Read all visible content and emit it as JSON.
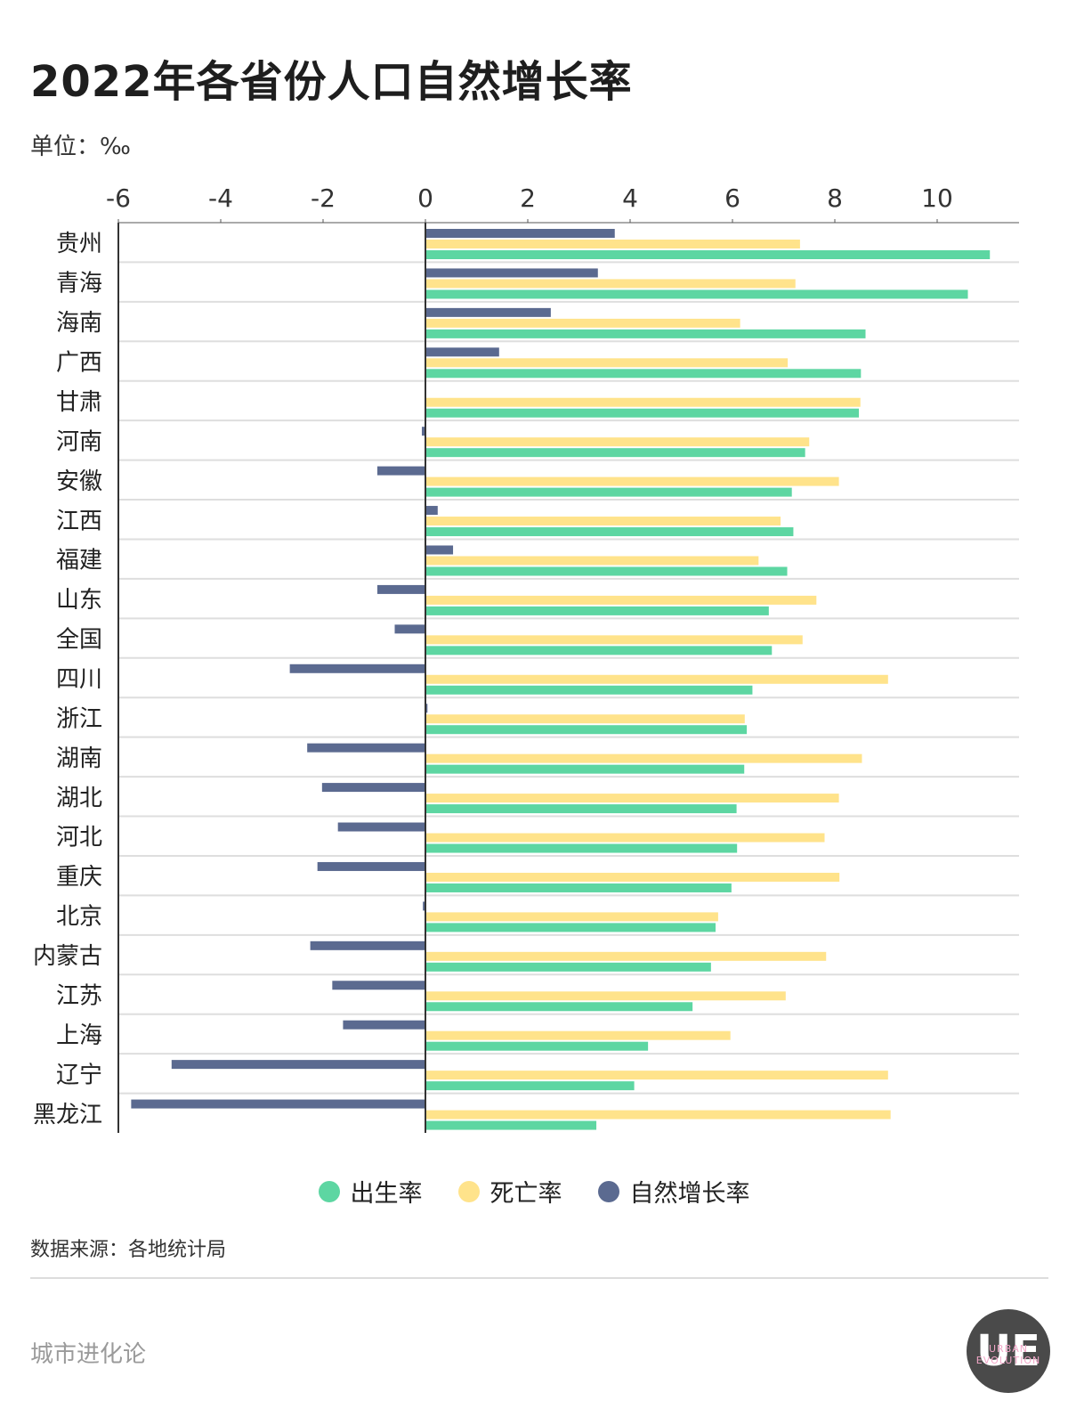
{
  "title": "2022年各省份人口自然增长率",
  "unit_label": "单位：‰",
  "source": "数据来源：各地统计局",
  "brand": "城市进化论",
  "logo": {
    "letters": "UE",
    "sub": "URBAN EVOLUTION"
  },
  "colors": {
    "birth": "#5dd6a2",
    "death": "#ffe38b",
    "natural": "#5b6a90"
  },
  "legend": [
    {
      "label": "出生率",
      "color": "#5dd6a2"
    },
    {
      "label": "死亡率",
      "color": "#ffe38b"
    },
    {
      "label": "自然增长率",
      "color": "#5b6a90"
    }
  ],
  "chart_data": {
    "type": "bar",
    "orientation": "horizontal",
    "title": "2022年各省份人口自然增长率",
    "xlabel": "",
    "ylabel": "",
    "xlim": [
      -6,
      11.6
    ],
    "xticks": [
      "-6",
      "-4",
      "-2",
      "0",
      "2",
      "4",
      "6",
      "8",
      "10"
    ],
    "categories": [
      "贵州",
      "青海",
      "海南",
      "广西",
      "甘肃",
      "河南",
      "安徽",
      "江西",
      "福建",
      "山东",
      "全国",
      "四川",
      "浙江",
      "湖南",
      "湖北",
      "河北",
      "重庆",
      "北京",
      "内蒙古",
      "江苏",
      "上海",
      "辽宁",
      "黑龙江"
    ],
    "series": [
      {
        "name": "自然增长率",
        "key": "natural",
        "values": [
          3.7,
          3.37,
          2.45,
          1.44,
          0.0,
          -0.07,
          -0.94,
          0.24,
          0.54,
          -0.94,
          -0.6,
          -2.65,
          0.04,
          -2.31,
          -2.02,
          -1.71,
          -2.11,
          -0.05,
          -2.25,
          -1.82,
          -1.61,
          -4.96,
          -5.75
        ]
      },
      {
        "name": "死亡率",
        "key": "death",
        "values": [
          7.32,
          7.23,
          6.15,
          7.08,
          8.5,
          7.5,
          8.08,
          6.94,
          6.51,
          7.64,
          7.37,
          9.04,
          6.24,
          8.53,
          8.08,
          7.8,
          8.09,
          5.72,
          7.83,
          7.04,
          5.96,
          9.04,
          9.09
        ]
      },
      {
        "name": "出生率",
        "key": "birth",
        "values": [
          11.03,
          10.6,
          8.6,
          8.51,
          8.47,
          7.42,
          7.16,
          7.19,
          7.07,
          6.71,
          6.77,
          6.39,
          6.28,
          6.23,
          6.08,
          6.09,
          5.98,
          5.67,
          5.58,
          5.22,
          4.35,
          4.08,
          3.34
        ]
      }
    ]
  }
}
